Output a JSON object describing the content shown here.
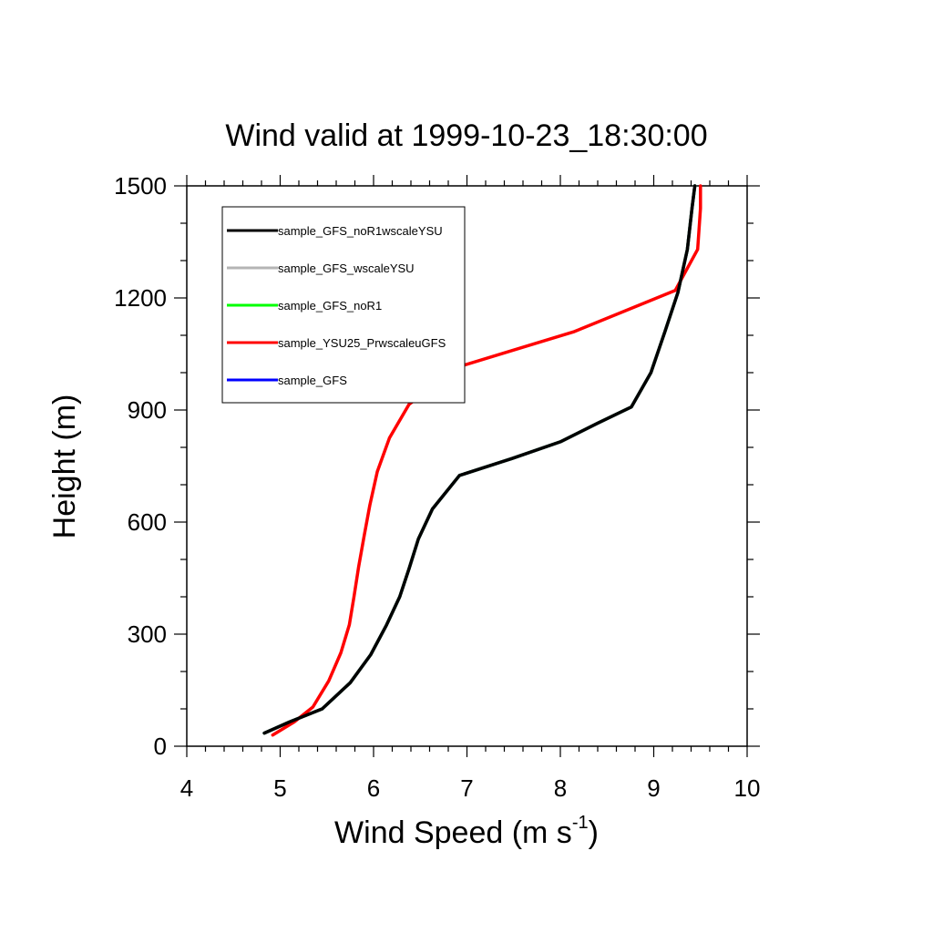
{
  "chart_data": {
    "type": "line",
    "title": "Wind valid at 1999-10-23_18:30:00",
    "xlabel_main": "Wind Speed (m s",
    "xlabel_sup": "-1",
    "xlabel_end": ")",
    "ylabel": "Height (m)",
    "xlim": [
      4,
      10
    ],
    "ylim": [
      0,
      1500
    ],
    "xticks": [
      4,
      5,
      6,
      7,
      8,
      9,
      10
    ],
    "yticks": [
      0,
      300,
      600,
      900,
      1200,
      1500
    ],
    "legend_position": "top-left",
    "series": [
      {
        "name": "sample_GFS_noR1wscaleYSU",
        "color": "#000000",
        "points": [
          [
            4.83,
            35
          ],
          [
            5.1,
            65
          ],
          [
            5.45,
            100
          ],
          [
            5.75,
            170
          ],
          [
            5.97,
            245
          ],
          [
            6.14,
            325
          ],
          [
            6.28,
            400
          ],
          [
            6.38,
            475
          ],
          [
            6.48,
            555
          ],
          [
            6.63,
            635
          ],
          [
            6.92,
            725
          ],
          [
            7.48,
            770
          ],
          [
            8.0,
            815
          ],
          [
            8.4,
            865
          ],
          [
            8.76,
            908
          ],
          [
            8.97,
            1000
          ],
          [
            9.12,
            1110
          ],
          [
            9.26,
            1215
          ],
          [
            9.36,
            1330
          ],
          [
            9.41,
            1440
          ],
          [
            9.44,
            1500
          ]
        ]
      },
      {
        "name": "sample_GFS_wscaleYSU",
        "color": "#b4b4b4",
        "points": [
          [
            4.83,
            35
          ],
          [
            5.1,
            65
          ],
          [
            5.45,
            100
          ],
          [
            5.75,
            170
          ],
          [
            5.97,
            245
          ],
          [
            6.14,
            325
          ],
          [
            6.28,
            400
          ],
          [
            6.38,
            475
          ],
          [
            6.48,
            555
          ],
          [
            6.63,
            635
          ],
          [
            6.92,
            725
          ],
          [
            7.48,
            770
          ],
          [
            8.0,
            815
          ],
          [
            8.4,
            865
          ],
          [
            8.76,
            908
          ],
          [
            8.97,
            1000
          ],
          [
            9.12,
            1110
          ],
          [
            9.26,
            1215
          ],
          [
            9.36,
            1330
          ],
          [
            9.41,
            1440
          ],
          [
            9.44,
            1500
          ]
        ]
      },
      {
        "name": "sample_GFS_noR1",
        "color": "#00ff00",
        "points": [
          [
            4.83,
            35
          ],
          [
            5.1,
            65
          ],
          [
            5.45,
            100
          ],
          [
            5.75,
            170
          ],
          [
            5.97,
            245
          ],
          [
            6.14,
            325
          ],
          [
            6.28,
            400
          ],
          [
            6.38,
            475
          ],
          [
            6.48,
            555
          ],
          [
            6.63,
            635
          ],
          [
            6.92,
            725
          ],
          [
            7.48,
            770
          ],
          [
            8.0,
            815
          ],
          [
            8.4,
            865
          ],
          [
            8.76,
            908
          ],
          [
            8.97,
            1000
          ],
          [
            9.12,
            1110
          ],
          [
            9.26,
            1215
          ],
          [
            9.36,
            1330
          ],
          [
            9.41,
            1440
          ],
          [
            9.44,
            1500
          ]
        ]
      },
      {
        "name": "sample_YSU25_PrwscaleuGFS",
        "color": "#ff0000",
        "points": [
          [
            4.92,
            30
          ],
          [
            5.15,
            65
          ],
          [
            5.35,
            105
          ],
          [
            5.52,
            175
          ],
          [
            5.65,
            250
          ],
          [
            5.74,
            325
          ],
          [
            5.79,
            400
          ],
          [
            5.84,
            480
          ],
          [
            5.9,
            565
          ],
          [
            5.96,
            645
          ],
          [
            6.04,
            735
          ],
          [
            6.17,
            825
          ],
          [
            6.38,
            915
          ],
          [
            6.9,
            1015
          ],
          [
            8.15,
            1110
          ],
          [
            9.23,
            1220
          ],
          [
            9.47,
            1330
          ],
          [
            9.5,
            1440
          ],
          [
            9.5,
            1500
          ]
        ]
      },
      {
        "name": "sample_GFS",
        "color": "#0000ff",
        "points": [
          [
            4.83,
            35
          ],
          [
            5.1,
            65
          ],
          [
            5.45,
            100
          ],
          [
            5.75,
            170
          ],
          [
            5.97,
            245
          ],
          [
            6.14,
            325
          ],
          [
            6.28,
            400
          ],
          [
            6.38,
            475
          ],
          [
            6.48,
            555
          ],
          [
            6.63,
            635
          ],
          [
            6.92,
            725
          ],
          [
            7.48,
            770
          ],
          [
            8.0,
            815
          ],
          [
            8.4,
            865
          ],
          [
            8.76,
            908
          ],
          [
            8.97,
            1000
          ],
          [
            9.12,
            1110
          ],
          [
            9.26,
            1215
          ],
          [
            9.36,
            1330
          ],
          [
            9.41,
            1440
          ],
          [
            9.44,
            1500
          ]
        ]
      }
    ]
  }
}
